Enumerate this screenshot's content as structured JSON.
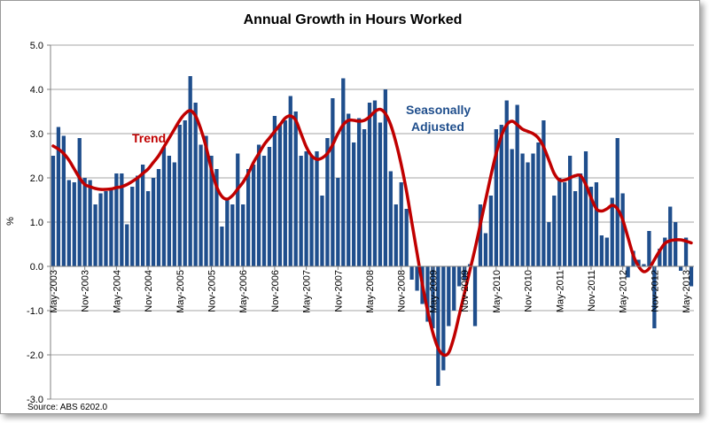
{
  "chart_data": {
    "type": "bar",
    "title": "Annual Growth in Hours Worked",
    "ylabel": "%",
    "xlabel": "",
    "source": "Source: ABS 6202.0",
    "ylim": [
      -3.0,
      5.0
    ],
    "ytick_labels": [
      "5.0",
      "4.0",
      "3.0",
      "2.0",
      "1.0",
      "0.0",
      "-1.0",
      "-2.0",
      "-3.0"
    ],
    "x_tick_labels": [
      "May-2003",
      "Nov-2003",
      "May-2004",
      "Nov-2004",
      "May-2005",
      "Nov-2005",
      "May-2006",
      "Nov-2006",
      "May-2007",
      "Nov-2007",
      "May-2008",
      "Nov-2008",
      "May-2009",
      "Nov-2009",
      "May-2010",
      "Nov-2010",
      "May-2011",
      "Nov-2011",
      "May-2012",
      "Nov-2012",
      "May-2013"
    ],
    "grid": true,
    "series": [
      {
        "name": "Seasonally Adjusted",
        "type": "bar",
        "color": "#1f4e8c",
        "values": [
          2.5,
          3.15,
          2.95,
          1.95,
          1.9,
          2.9,
          2.0,
          1.95,
          1.4,
          1.65,
          1.7,
          1.75,
          2.1,
          2.1,
          0.95,
          1.8,
          2.05,
          2.3,
          1.7,
          2.0,
          2.2,
          2.7,
          2.5,
          2.35,
          3.2,
          3.3,
          4.3,
          3.7,
          2.75,
          2.95,
          2.5,
          2.2,
          0.9,
          1.5,
          1.4,
          2.55,
          1.4,
          2.2,
          2.3,
          2.75,
          2.5,
          2.7,
          3.4,
          3.2,
          3.3,
          3.85,
          3.5,
          2.5,
          2.6,
          2.5,
          2.6,
          1.6,
          2.9,
          3.8,
          2.0,
          4.25,
          3.45,
          2.8,
          3.35,
          3.1,
          3.7,
          3.75,
          3.25,
          4.0,
          2.15,
          1.4,
          1.9,
          1.3,
          -0.3,
          -0.55,
          -0.85,
          -1.25,
          -1.4,
          -2.7,
          -2.35,
          -1.35,
          -1.0,
          -0.45,
          -0.3,
          0.05,
          -1.35,
          1.4,
          0.75,
          1.6,
          3.1,
          3.2,
          3.75,
          2.65,
          3.65,
          2.55,
          2.35,
          2.55,
          2.8,
          3.3,
          1.0,
          1.6,
          2.0,
          1.9,
          2.5,
          1.7,
          2.1,
          2.6,
          1.8,
          1.9,
          0.7,
          0.65,
          1.55,
          2.9,
          1.65,
          -0.25,
          0.35,
          0.15,
          0.05,
          0.8,
          -1.4,
          0.4,
          0.65,
          1.35,
          1.0,
          -0.1,
          0.65,
          -0.45
        ]
      },
      {
        "name": "Trend",
        "type": "line",
        "color": "#c00000",
        "values": [
          2.72,
          2.65,
          2.55,
          2.4,
          2.2,
          2.0,
          1.85,
          1.8,
          1.76,
          1.74,
          1.74,
          1.75,
          1.78,
          1.8,
          1.85,
          1.92,
          2.0,
          2.1,
          2.2,
          2.35,
          2.5,
          2.7,
          2.9,
          3.1,
          3.3,
          3.45,
          3.52,
          3.4,
          3.1,
          2.7,
          2.2,
          1.8,
          1.58,
          1.52,
          1.6,
          1.75,
          1.9,
          2.1,
          2.35,
          2.55,
          2.75,
          2.9,
          3.05,
          3.2,
          3.35,
          3.4,
          3.3,
          3.0,
          2.7,
          2.5,
          2.42,
          2.45,
          2.55,
          2.75,
          3.0,
          3.2,
          3.3,
          3.3,
          3.28,
          3.3,
          3.38,
          3.5,
          3.55,
          3.45,
          3.2,
          2.8,
          2.3,
          1.7,
          1.0,
          0.3,
          -0.4,
          -1.0,
          -1.5,
          -1.85,
          -2.0,
          -1.95,
          -1.6,
          -1.1,
          -0.6,
          -0.1,
          0.4,
          0.95,
          1.5,
          2.05,
          2.55,
          2.95,
          3.2,
          3.28,
          3.2,
          3.1,
          3.05,
          3.0,
          2.9,
          2.7,
          2.4,
          2.1,
          1.95,
          1.95,
          2.0,
          2.05,
          2.05,
          1.85,
          1.55,
          1.3,
          1.25,
          1.3,
          1.38,
          1.3,
          1.05,
          0.65,
          0.25,
          0.0,
          -0.12,
          -0.05,
          0.15,
          0.35,
          0.52,
          0.58,
          0.6,
          0.6,
          0.57,
          0.53
        ]
      }
    ],
    "annotations": [
      {
        "text": "Trend",
        "color": "#c00000"
      },
      {
        "text": "Seasonally",
        "color": "#1f4e8c"
      },
      {
        "text": "Adjusted",
        "color": "#1f4e8c"
      }
    ]
  }
}
